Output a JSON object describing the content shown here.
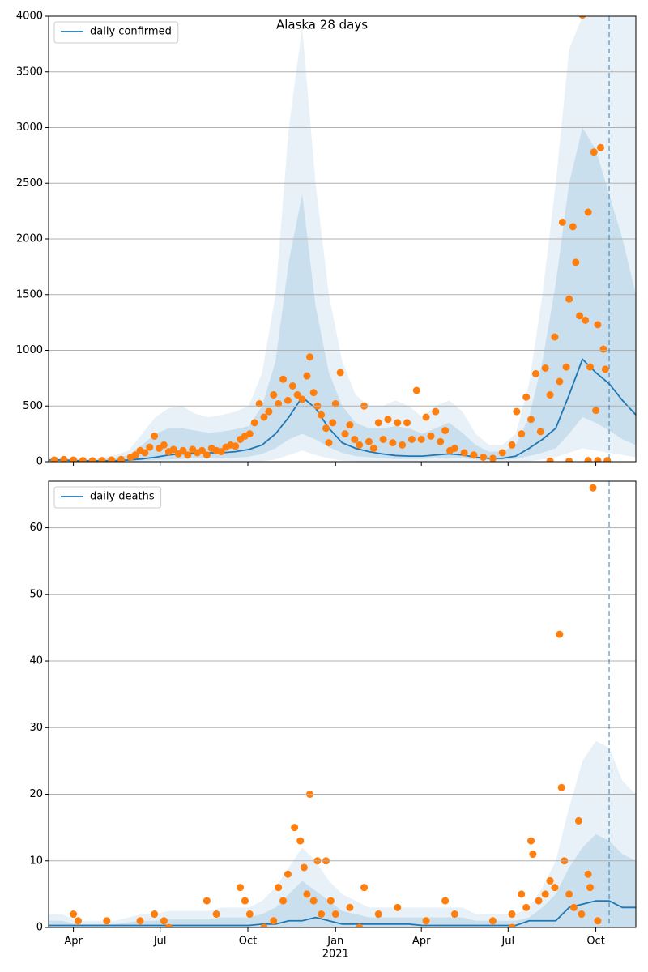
{
  "chart_data": [
    {
      "type": "line",
      "title": "Alaska 28 days",
      "xlim": [
        -26,
        590
      ],
      "ylim": [
        0,
        4000
      ],
      "yticks": [
        0,
        500,
        1000,
        1500,
        2000,
        2500,
        3000,
        3500,
        4000
      ],
      "grid": true,
      "legend": "upper-left",
      "vline": 562,
      "x": [
        -26,
        -12,
        2,
        16,
        30,
        44,
        58,
        72,
        86,
        100,
        114,
        128,
        142,
        156,
        170,
        184,
        198,
        212,
        226,
        240,
        254,
        268,
        282,
        296,
        310,
        324,
        338,
        352,
        366,
        380,
        394,
        408,
        422,
        436,
        450,
        464,
        478,
        492,
        506,
        520,
        534,
        548,
        562,
        576,
        590
      ],
      "bands": [
        {
          "color": "#1f77b4",
          "opacity": 0.1,
          "upper": [
            40,
            40,
            30,
            30,
            40,
            60,
            100,
            250,
            400,
            480,
            500,
            430,
            400,
            420,
            450,
            500,
            800,
            1500,
            3000,
            3900,
            2500,
            1500,
            900,
            600,
            500,
            500,
            550,
            500,
            400,
            500,
            550,
            450,
            250,
            150,
            150,
            250,
            700,
            1500,
            2500,
            3700,
            4000,
            4000,
            4000,
            4000,
            4000
          ],
          "lower": [
            0,
            0,
            0,
            0,
            0,
            0,
            0,
            0,
            0,
            0,
            0,
            0,
            0,
            0,
            0,
            0,
            5,
            20,
            60,
            100,
            60,
            30,
            10,
            5,
            0,
            0,
            0,
            0,
            0,
            0,
            0,
            0,
            0,
            0,
            0,
            0,
            5,
            20,
            40,
            80,
            120,
            100,
            80,
            60,
            40
          ]
        },
        {
          "color": "#1f77b4",
          "opacity": 0.15,
          "upper": [
            25,
            25,
            20,
            20,
            25,
            35,
            60,
            150,
            250,
            300,
            300,
            280,
            260,
            270,
            290,
            320,
            500,
            900,
            1800,
            2400,
            1400,
            800,
            500,
            350,
            300,
            300,
            320,
            300,
            250,
            300,
            350,
            260,
            150,
            90,
            90,
            150,
            400,
            900,
            1600,
            2500,
            3000,
            2800,
            2400,
            2000,
            1500
          ],
          "lower": [
            5,
            5,
            5,
            3,
            3,
            5,
            8,
            10,
            15,
            20,
            25,
            30,
            30,
            30,
            35,
            45,
            70,
            120,
            200,
            250,
            200,
            130,
            80,
            50,
            40,
            30,
            25,
            25,
            25,
            30,
            35,
            30,
            20,
            15,
            15,
            25,
            50,
            80,
            120,
            250,
            400,
            350,
            280,
            200,
            150
          ]
        }
      ],
      "series": [
        {
          "name": "daily confirmed",
          "color": "#1f77b4",
          "values": [
            15,
            15,
            10,
            8,
            8,
            10,
            15,
            25,
            40,
            60,
            70,
            75,
            80,
            80,
            90,
            110,
            150,
            250,
            400,
            580,
            480,
            300,
            170,
            120,
            90,
            70,
            55,
            50,
            50,
            60,
            70,
            60,
            40,
            30,
            30,
            50,
            120,
            200,
            300,
            600,
            920,
            800,
            700,
            550,
            420
          ]
        },
        {
          "type": "scatter",
          "color": "#ff7f0e",
          "x": [
            -20,
            -10,
            0,
            10,
            20,
            30,
            40,
            50,
            60,
            65,
            70,
            75,
            80,
            85,
            90,
            95,
            100,
            105,
            110,
            115,
            120,
            125,
            130,
            135,
            140,
            145,
            150,
            155,
            160,
            165,
            170,
            175,
            180,
            185,
            190,
            195,
            200,
            205,
            210,
            215,
            220,
            225,
            230,
            235,
            240,
            245,
            248,
            252,
            256,
            260,
            265,
            268,
            272,
            275,
            280,
            285,
            290,
            295,
            300,
            305,
            310,
            315,
            320,
            325,
            330,
            335,
            340,
            345,
            350,
            355,
            360,
            365,
            370,
            375,
            380,
            385,
            390,
            395,
            400,
            410,
            420,
            430,
            440,
            450,
            460,
            465,
            470,
            475,
            480,
            485,
            490,
            495,
            500,
            505,
            510,
            513,
            517,
            520,
            524,
            527,
            531,
            534,
            537,
            540,
            542,
            546,
            548,
            550,
            553,
            556,
            558,
            560,
            550,
            540,
            520,
            500
          ],
          "values": [
            15,
            20,
            15,
            10,
            8,
            10,
            15,
            20,
            40,
            60,
            100,
            80,
            130,
            230,
            120,
            150,
            90,
            110,
            70,
            100,
            60,
            110,
            80,
            100,
            60,
            120,
            100,
            90,
            130,
            150,
            140,
            200,
            230,
            250,
            350,
            520,
            400,
            450,
            600,
            520,
            740,
            550,
            680,
            600,
            560,
            770,
            940,
            620,
            500,
            420,
            300,
            170,
            350,
            520,
            800,
            250,
            330,
            200,
            150,
            500,
            180,
            120,
            350,
            200,
            380,
            170,
            350,
            150,
            350,
            200,
            640,
            200,
            400,
            230,
            450,
            180,
            280,
            100,
            120,
            80,
            60,
            40,
            30,
            80,
            150,
            450,
            250,
            580,
            380,
            790,
            270,
            840,
            600,
            1120,
            720,
            2150,
            850,
            1460,
            2110,
            1790,
            1310,
            4010,
            1270,
            2240,
            850,
            2780,
            460,
            1230,
            2820,
            1010,
            830,
            10,
            10,
            10,
            5,
            5
          ]
        }
      ]
    },
    {
      "type": "line",
      "xlim": [
        -26,
        590
      ],
      "ylim": [
        0,
        67
      ],
      "yticks": [
        0,
        10,
        20,
        30,
        40,
        50,
        60
      ],
      "grid": true,
      "legend": "upper-left",
      "vline": 562,
      "xticks": [
        {
          "value": 0,
          "label": "Apr"
        },
        {
          "value": 91,
          "label": "Jul"
        },
        {
          "value": 183,
          "label": "Oct"
        },
        {
          "value": 275,
          "label": "Jan"
        },
        {
          "value": 365,
          "label": "Apr"
        },
        {
          "value": 456,
          "label": "Jul"
        },
        {
          "value": 548,
          "label": "Oct"
        }
      ],
      "x_year_label": {
        "value": 275,
        "label": "2021"
      },
      "x": [
        -26,
        -12,
        2,
        16,
        30,
        44,
        58,
        72,
        86,
        100,
        114,
        128,
        142,
        156,
        170,
        184,
        198,
        212,
        226,
        240,
        254,
        268,
        282,
        296,
        310,
        324,
        338,
        352,
        366,
        380,
        394,
        408,
        422,
        436,
        450,
        464,
        478,
        492,
        506,
        520,
        534,
        548,
        562,
        576,
        590
      ],
      "bands": [
        {
          "color": "#1f77b4",
          "opacity": 0.1,
          "upper": [
            2,
            2,
            1,
            1,
            1,
            1,
            1.5,
            2,
            2,
            2.5,
            2.5,
            2.5,
            2.5,
            3,
            3,
            3,
            4,
            6,
            9,
            12,
            10,
            7,
            5,
            4,
            3,
            3,
            3,
            3,
            3,
            3,
            3,
            3,
            2,
            2,
            2,
            2,
            3,
            6,
            10,
            18,
            25,
            28,
            27,
            22,
            20
          ],
          "lower": [
            0,
            0,
            0,
            0,
            0,
            0,
            0,
            0,
            0,
            0,
            0,
            0,
            0,
            0,
            0,
            0,
            0,
            0,
            0,
            0,
            0,
            0,
            0,
            0,
            0,
            0,
            0,
            0,
            0,
            0,
            0,
            0,
            0,
            0,
            0,
            0,
            0,
            0,
            0,
            0,
            0,
            0,
            0,
            0,
            0
          ]
        },
        {
          "color": "#1f77b4",
          "opacity": 0.15,
          "upper": [
            1,
            1,
            0.5,
            0.5,
            0.5,
            0.5,
            0.8,
            1,
            1,
            1.2,
            1.2,
            1.2,
            1.2,
            1.5,
            1.5,
            1.5,
            2,
            3,
            5,
            7,
            5.5,
            4,
            2.5,
            2,
            1.5,
            1.5,
            1.5,
            1.5,
            1.5,
            1.5,
            1.5,
            1.5,
            1,
            1,
            1,
            1,
            1.5,
            3,
            5,
            9,
            12,
            14,
            13,
            11,
            10
          ],
          "lower": [
            0,
            0,
            0,
            0,
            0,
            0,
            0,
            0,
            0,
            0,
            0,
            0,
            0,
            0,
            0,
            0,
            0,
            0,
            0,
            0,
            0,
            0,
            0,
            0,
            0,
            0,
            0,
            0,
            0,
            0,
            0,
            0,
            0,
            0,
            0,
            0,
            0,
            0,
            0,
            0,
            0,
            0,
            0,
            0,
            0
          ]
        }
      ],
      "series": [
        {
          "name": "daily deaths",
          "color": "#1f77b4",
          "values": [
            0.3,
            0.3,
            0.3,
            0.3,
            0.3,
            0.3,
            0.3,
            0.3,
            0.3,
            0.3,
            0.3,
            0.3,
            0.3,
            0.3,
            0.3,
            0.3,
            0.5,
            0.5,
            1,
            1,
            1.5,
            1,
            0.5,
            0.5,
            0.5,
            0.5,
            0.5,
            0.5,
            0.3,
            0.3,
            0.3,
            0.3,
            0.3,
            0.3,
            0.3,
            0.3,
            1,
            1,
            1,
            3,
            3.5,
            4,
            4,
            3,
            3
          ]
        },
        {
          "type": "scatter",
          "color": "#ff7f0e",
          "x": [
            0,
            5,
            35,
            70,
            85,
            95,
            140,
            150,
            175,
            180,
            185,
            210,
            215,
            220,
            225,
            232,
            238,
            242,
            245,
            248,
            252,
            256,
            260,
            265,
            270,
            275,
            290,
            305,
            320,
            340,
            370,
            390,
            400,
            440,
            460,
            470,
            475,
            480,
            482,
            488,
            495,
            500,
            505,
            510,
            512,
            515,
            520,
            525,
            530,
            533,
            540,
            545,
            542,
            550,
            460,
            300,
            200,
            100
          ],
          "values": [
            2,
            1,
            1,
            1,
            2,
            1,
            4,
            2,
            6,
            4,
            2,
            1,
            6,
            4,
            8,
            15,
            13,
            9,
            5,
            20,
            4,
            10,
            2,
            10,
            4,
            2,
            3,
            6,
            2,
            3,
            1,
            4,
            2,
            1,
            2,
            5,
            3,
            13,
            11,
            4,
            5,
            7,
            6,
            44,
            21,
            10,
            5,
            3,
            16,
            2,
            8,
            66,
            6,
            1,
            0,
            0,
            0,
            0
          ]
        }
      ]
    }
  ]
}
